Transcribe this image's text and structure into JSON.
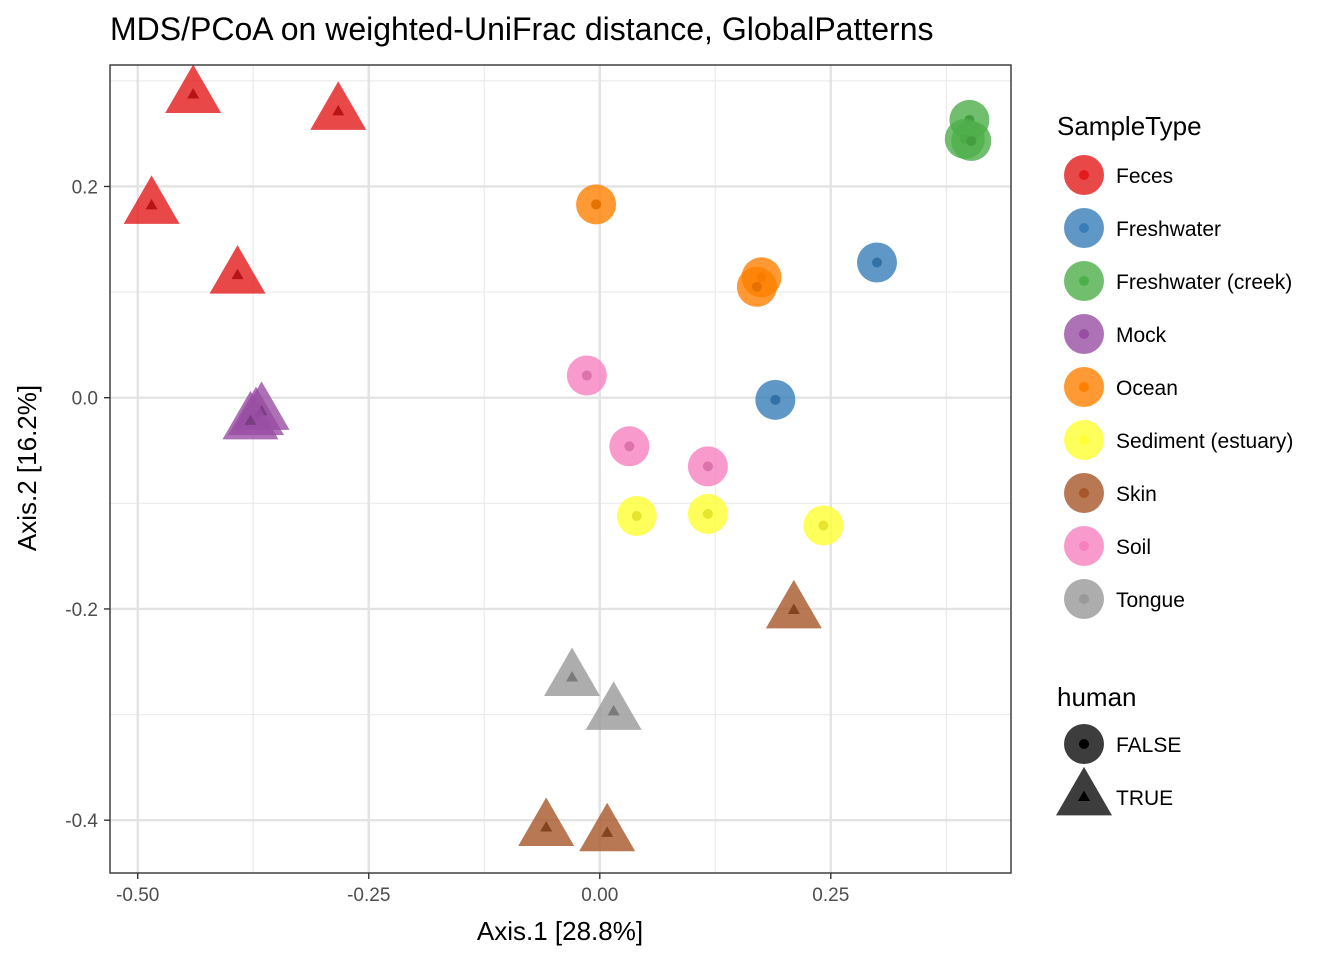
{
  "chart_data": {
    "type": "scatter",
    "title": "MDS/PCoA on weighted-UniFrac distance, GlobalPatterns",
    "xlabel": "Axis.1   [28.8%]",
    "ylabel": "Axis.2   [16.2%]",
    "xlim": [
      -0.53,
      0.445
    ],
    "ylim": [
      -0.45,
      0.315
    ],
    "x_ticks": [
      -0.5,
      -0.25,
      0.0,
      0.25
    ],
    "x_tick_labels": [
      "-0.50",
      "-0.25",
      "0.00",
      "0.25"
    ],
    "y_ticks": [
      0.2,
      0.0,
      -0.2,
      -0.4
    ],
    "y_tick_labels": [
      "0.2",
      "0.0",
      "-0.2",
      "-0.4"
    ],
    "grid": true,
    "legend_color_title": "SampleType",
    "legend_shape_title": "human",
    "categories": [
      {
        "name": "Feces",
        "color": "#E41A1C"
      },
      {
        "name": "Freshwater",
        "color": "#377EB8"
      },
      {
        "name": "Freshwater (creek)",
        "color": "#4DAF4A"
      },
      {
        "name": "Mock",
        "color": "#984EA3"
      },
      {
        "name": "Ocean",
        "color": "#FF7F00"
      },
      {
        "name": "Sediment (estuary)",
        "color": "#FFFF33"
      },
      {
        "name": "Skin",
        "color": "#A65628"
      },
      {
        "name": "Soil",
        "color": "#F781BF"
      },
      {
        "name": "Tongue",
        "color": "#999999"
      }
    ],
    "shapes": [
      {
        "name": "FALSE",
        "shape": "circle"
      },
      {
        "name": "TRUE",
        "shape": "triangle"
      }
    ],
    "points": [
      {
        "x": -0.44,
        "y": 0.287,
        "type": "Feces",
        "human": "TRUE"
      },
      {
        "x": -0.283,
        "y": 0.271,
        "type": "Feces",
        "human": "TRUE"
      },
      {
        "x": -0.485,
        "y": 0.182,
        "type": "Feces",
        "human": "TRUE"
      },
      {
        "x": -0.392,
        "y": 0.116,
        "type": "Feces",
        "human": "TRUE"
      },
      {
        "x": 0.3,
        "y": 0.128,
        "type": "Freshwater",
        "human": "FALSE"
      },
      {
        "x": 0.19,
        "y": -0.002,
        "type": "Freshwater",
        "human": "FALSE"
      },
      {
        "x": 0.4,
        "y": 0.263,
        "type": "Freshwater (creek)",
        "human": "FALSE"
      },
      {
        "x": 0.395,
        "y": 0.245,
        "type": "Freshwater (creek)",
        "human": "FALSE"
      },
      {
        "x": 0.402,
        "y": 0.243,
        "type": "Freshwater (creek)",
        "human": "FALSE"
      },
      {
        "x": -0.372,
        "y": -0.018,
        "type": "Mock",
        "human": "TRUE"
      },
      {
        "x": -0.366,
        "y": -0.013,
        "type": "Mock",
        "human": "TRUE"
      },
      {
        "x": -0.378,
        "y": -0.022,
        "type": "Mock",
        "human": "TRUE"
      },
      {
        "x": -0.004,
        "y": 0.183,
        "type": "Ocean",
        "human": "FALSE"
      },
      {
        "x": 0.175,
        "y": 0.114,
        "type": "Ocean",
        "human": "FALSE"
      },
      {
        "x": 0.17,
        "y": 0.105,
        "type": "Ocean",
        "human": "FALSE"
      },
      {
        "x": 0.04,
        "y": -0.112,
        "type": "Sediment (estuary)",
        "human": "FALSE"
      },
      {
        "x": 0.117,
        "y": -0.11,
        "type": "Sediment (estuary)",
        "human": "FALSE"
      },
      {
        "x": 0.242,
        "y": -0.121,
        "type": "Sediment (estuary)",
        "human": "FALSE"
      },
      {
        "x": 0.21,
        "y": -0.201,
        "type": "Skin",
        "human": "TRUE"
      },
      {
        "x": -0.058,
        "y": -0.407,
        "type": "Skin",
        "human": "TRUE"
      },
      {
        "x": 0.008,
        "y": -0.412,
        "type": "Skin",
        "human": "TRUE"
      },
      {
        "x": -0.014,
        "y": 0.021,
        "type": "Soil",
        "human": "FALSE"
      },
      {
        "x": 0.032,
        "y": -0.046,
        "type": "Soil",
        "human": "FALSE"
      },
      {
        "x": 0.117,
        "y": -0.065,
        "type": "Soil",
        "human": "FALSE"
      },
      {
        "x": -0.03,
        "y": -0.265,
        "type": "Tongue",
        "human": "TRUE"
      },
      {
        "x": 0.015,
        "y": -0.297,
        "type": "Tongue",
        "human": "TRUE"
      }
    ]
  }
}
